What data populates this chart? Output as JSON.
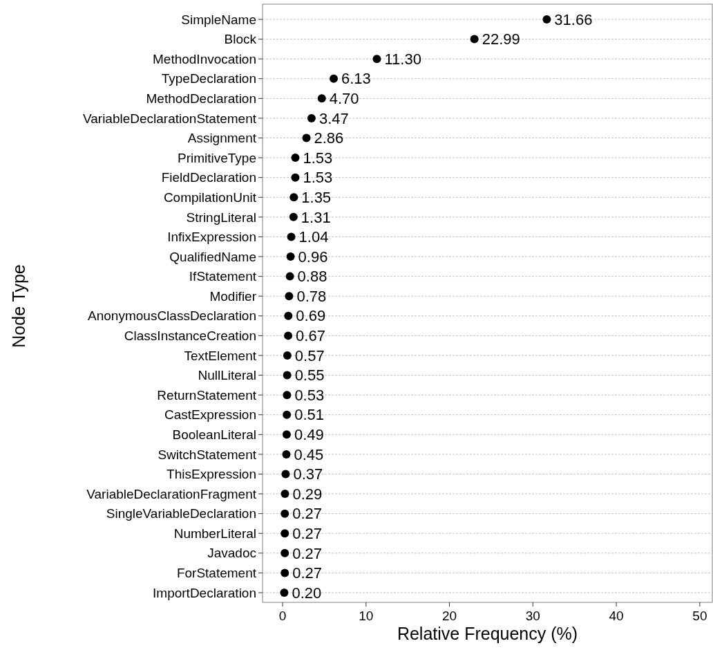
{
  "chart_data": {
    "type": "scatter",
    "orientation": "horizontal",
    "xlabel": "Relative Frequency (%)",
    "ylabel": "Node Type",
    "categories": [
      "SimpleName",
      "Block",
      "MethodInvocation",
      "TypeDeclaration",
      "MethodDeclaration",
      "VariableDeclarationStatement",
      "Assignment",
      "PrimitiveType",
      "FieldDeclaration",
      "CompilationUnit",
      "StringLiteral",
      "InfixExpression",
      "QualifiedName",
      "IfStatement",
      "Modifier",
      "AnonymousClassDeclaration",
      "ClassInstanceCreation",
      "TextElement",
      "NullLiteral",
      "ReturnStatement",
      "CastExpression",
      "BooleanLiteral",
      "SwitchStatement",
      "ThisExpression",
      "VariableDeclarationFragment",
      "SingleVariableDeclaration",
      "NumberLiteral",
      "Javadoc",
      "ForStatement",
      "ImportDeclaration"
    ],
    "values": [
      31.66,
      22.99,
      11.3,
      6.13,
      4.7,
      3.47,
      2.86,
      1.53,
      1.53,
      1.35,
      1.31,
      1.04,
      0.96,
      0.88,
      0.78,
      0.69,
      0.67,
      0.57,
      0.55,
      0.53,
      0.51,
      0.49,
      0.45,
      0.37,
      0.29,
      0.27,
      0.27,
      0.27,
      0.27,
      0.2
    ],
    "value_labels": [
      "31.66",
      "22.99",
      "11.30",
      "6.13",
      "4.70",
      "3.47",
      "2.86",
      "1.53",
      "1.53",
      "1.35",
      "1.31",
      "1.04",
      "0.96",
      "0.88",
      "0.78",
      "0.69",
      "0.67",
      "0.57",
      "0.55",
      "0.53",
      "0.51",
      "0.49",
      "0.45",
      "0.37",
      "0.29",
      "0.27",
      "0.27",
      "0.27",
      "0.27",
      "0.20"
    ],
    "color": "#000000",
    "marker": "circle",
    "grid": "y",
    "xlim": [
      -2.4,
      51.5
    ],
    "xticks": [
      0,
      10,
      20,
      30,
      40,
      50
    ]
  }
}
